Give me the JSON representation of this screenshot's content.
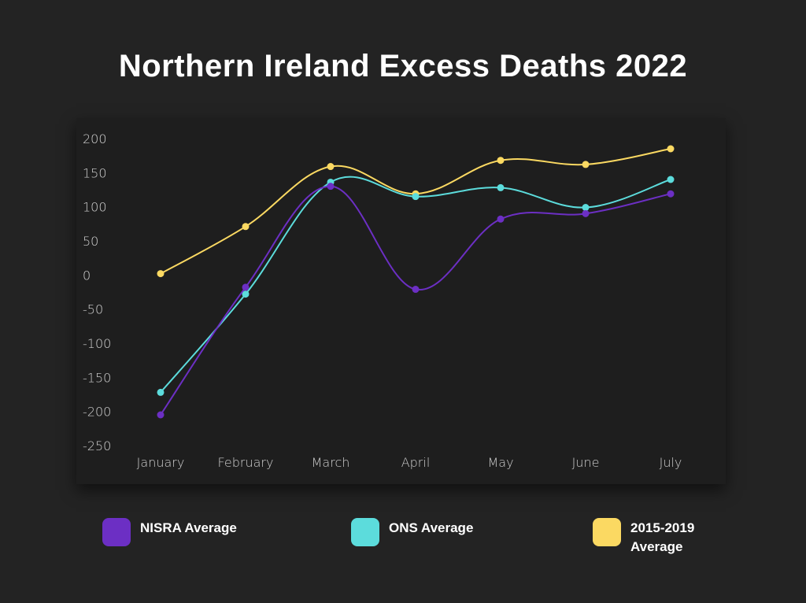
{
  "title": "Northern Ireland Excess Deaths 2022",
  "chart_data": {
    "type": "line",
    "categories": [
      "January",
      "February",
      "March",
      "April",
      "May",
      "June",
      "July"
    ],
    "y_ticks": [
      200,
      150,
      100,
      50,
      0,
      -50,
      -100,
      -150,
      -200,
      -250
    ],
    "ylim": [
      -250,
      200
    ],
    "grid": false,
    "smooth": true,
    "legend_position": "bottom",
    "series": [
      {
        "name": "NISRA Average",
        "color": "#6c2fc4",
        "values": [
          -205,
          -18,
          130,
          -21,
          82,
          90,
          119
        ]
      },
      {
        "name": "ONS Average",
        "color": "#5cdcdc",
        "values": [
          -172,
          -28,
          136,
          115,
          128,
          99,
          140
        ]
      },
      {
        "name": "2015-2019 Average",
        "color": "#fbd962",
        "values": [
          2,
          71,
          159,
          119,
          168,
          162,
          185
        ]
      }
    ]
  },
  "legend": [
    {
      "label": "NISRA Average",
      "color": "#6c2fc4"
    },
    {
      "label": "ONS Average",
      "color": "#5cdcdc"
    },
    {
      "label": "2015-2019 Average",
      "color": "#fbd962"
    }
  ]
}
